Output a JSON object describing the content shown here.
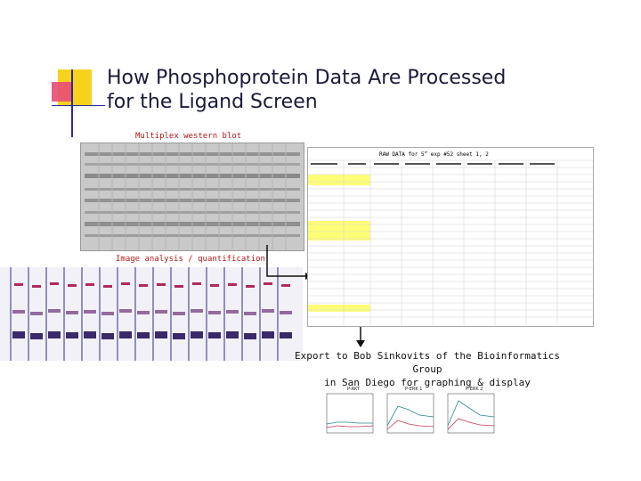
{
  "slide": {
    "title_line1": "How Phosphoprotein Data Are Processed",
    "title_line2": "for the Ligand Screen",
    "label_blot": "Multiplex western blot",
    "label_quant": "Image analysis / quantification",
    "export_line1": "Export to Bob Sinkovits of the Bioinformatics Group",
    "export_line2": "in San Diego for graphing & display",
    "sheet_header": "RAW DATA for 5” exp #52 sheet 1, 2"
  },
  "colors": {
    "accent_yellow": "#f7d21c",
    "accent_pink": "#e84b77",
    "title_text": "#1a1a3a",
    "label_red": "#b01818",
    "sheet_highlight": "#ffff77"
  },
  "graphs": [
    {
      "title": "P-AKT"
    },
    {
      "title": "P-ERK 1"
    },
    {
      "title": "P-ERK 2"
    }
  ]
}
